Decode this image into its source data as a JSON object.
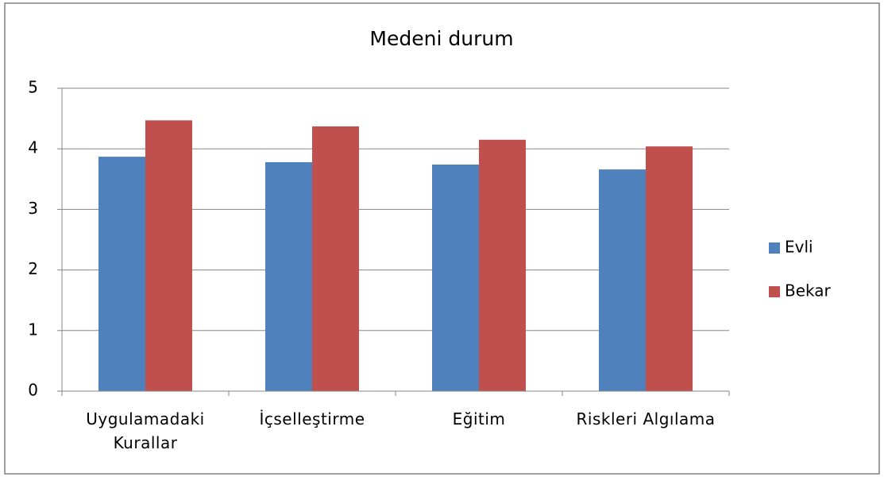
{
  "chart_data": {
    "type": "bar",
    "title": "Medeni durum",
    "categories": [
      "Uygulamadaki Kurallar",
      "İçselleştirme",
      "Eğitim",
      "Riskleri Algılama"
    ],
    "series": [
      {
        "name": "Evli",
        "color": "#4f81bd",
        "values": [
          3.87,
          3.78,
          3.74,
          3.66
        ]
      },
      {
        "name": "Bekar",
        "color": "#c0504d",
        "values": [
          4.47,
          4.37,
          4.15,
          4.04
        ]
      }
    ],
    "ylim": [
      0,
      5
    ],
    "yticks": [
      0,
      1,
      2,
      3,
      4,
      5
    ],
    "grid": true,
    "legend": "right"
  }
}
